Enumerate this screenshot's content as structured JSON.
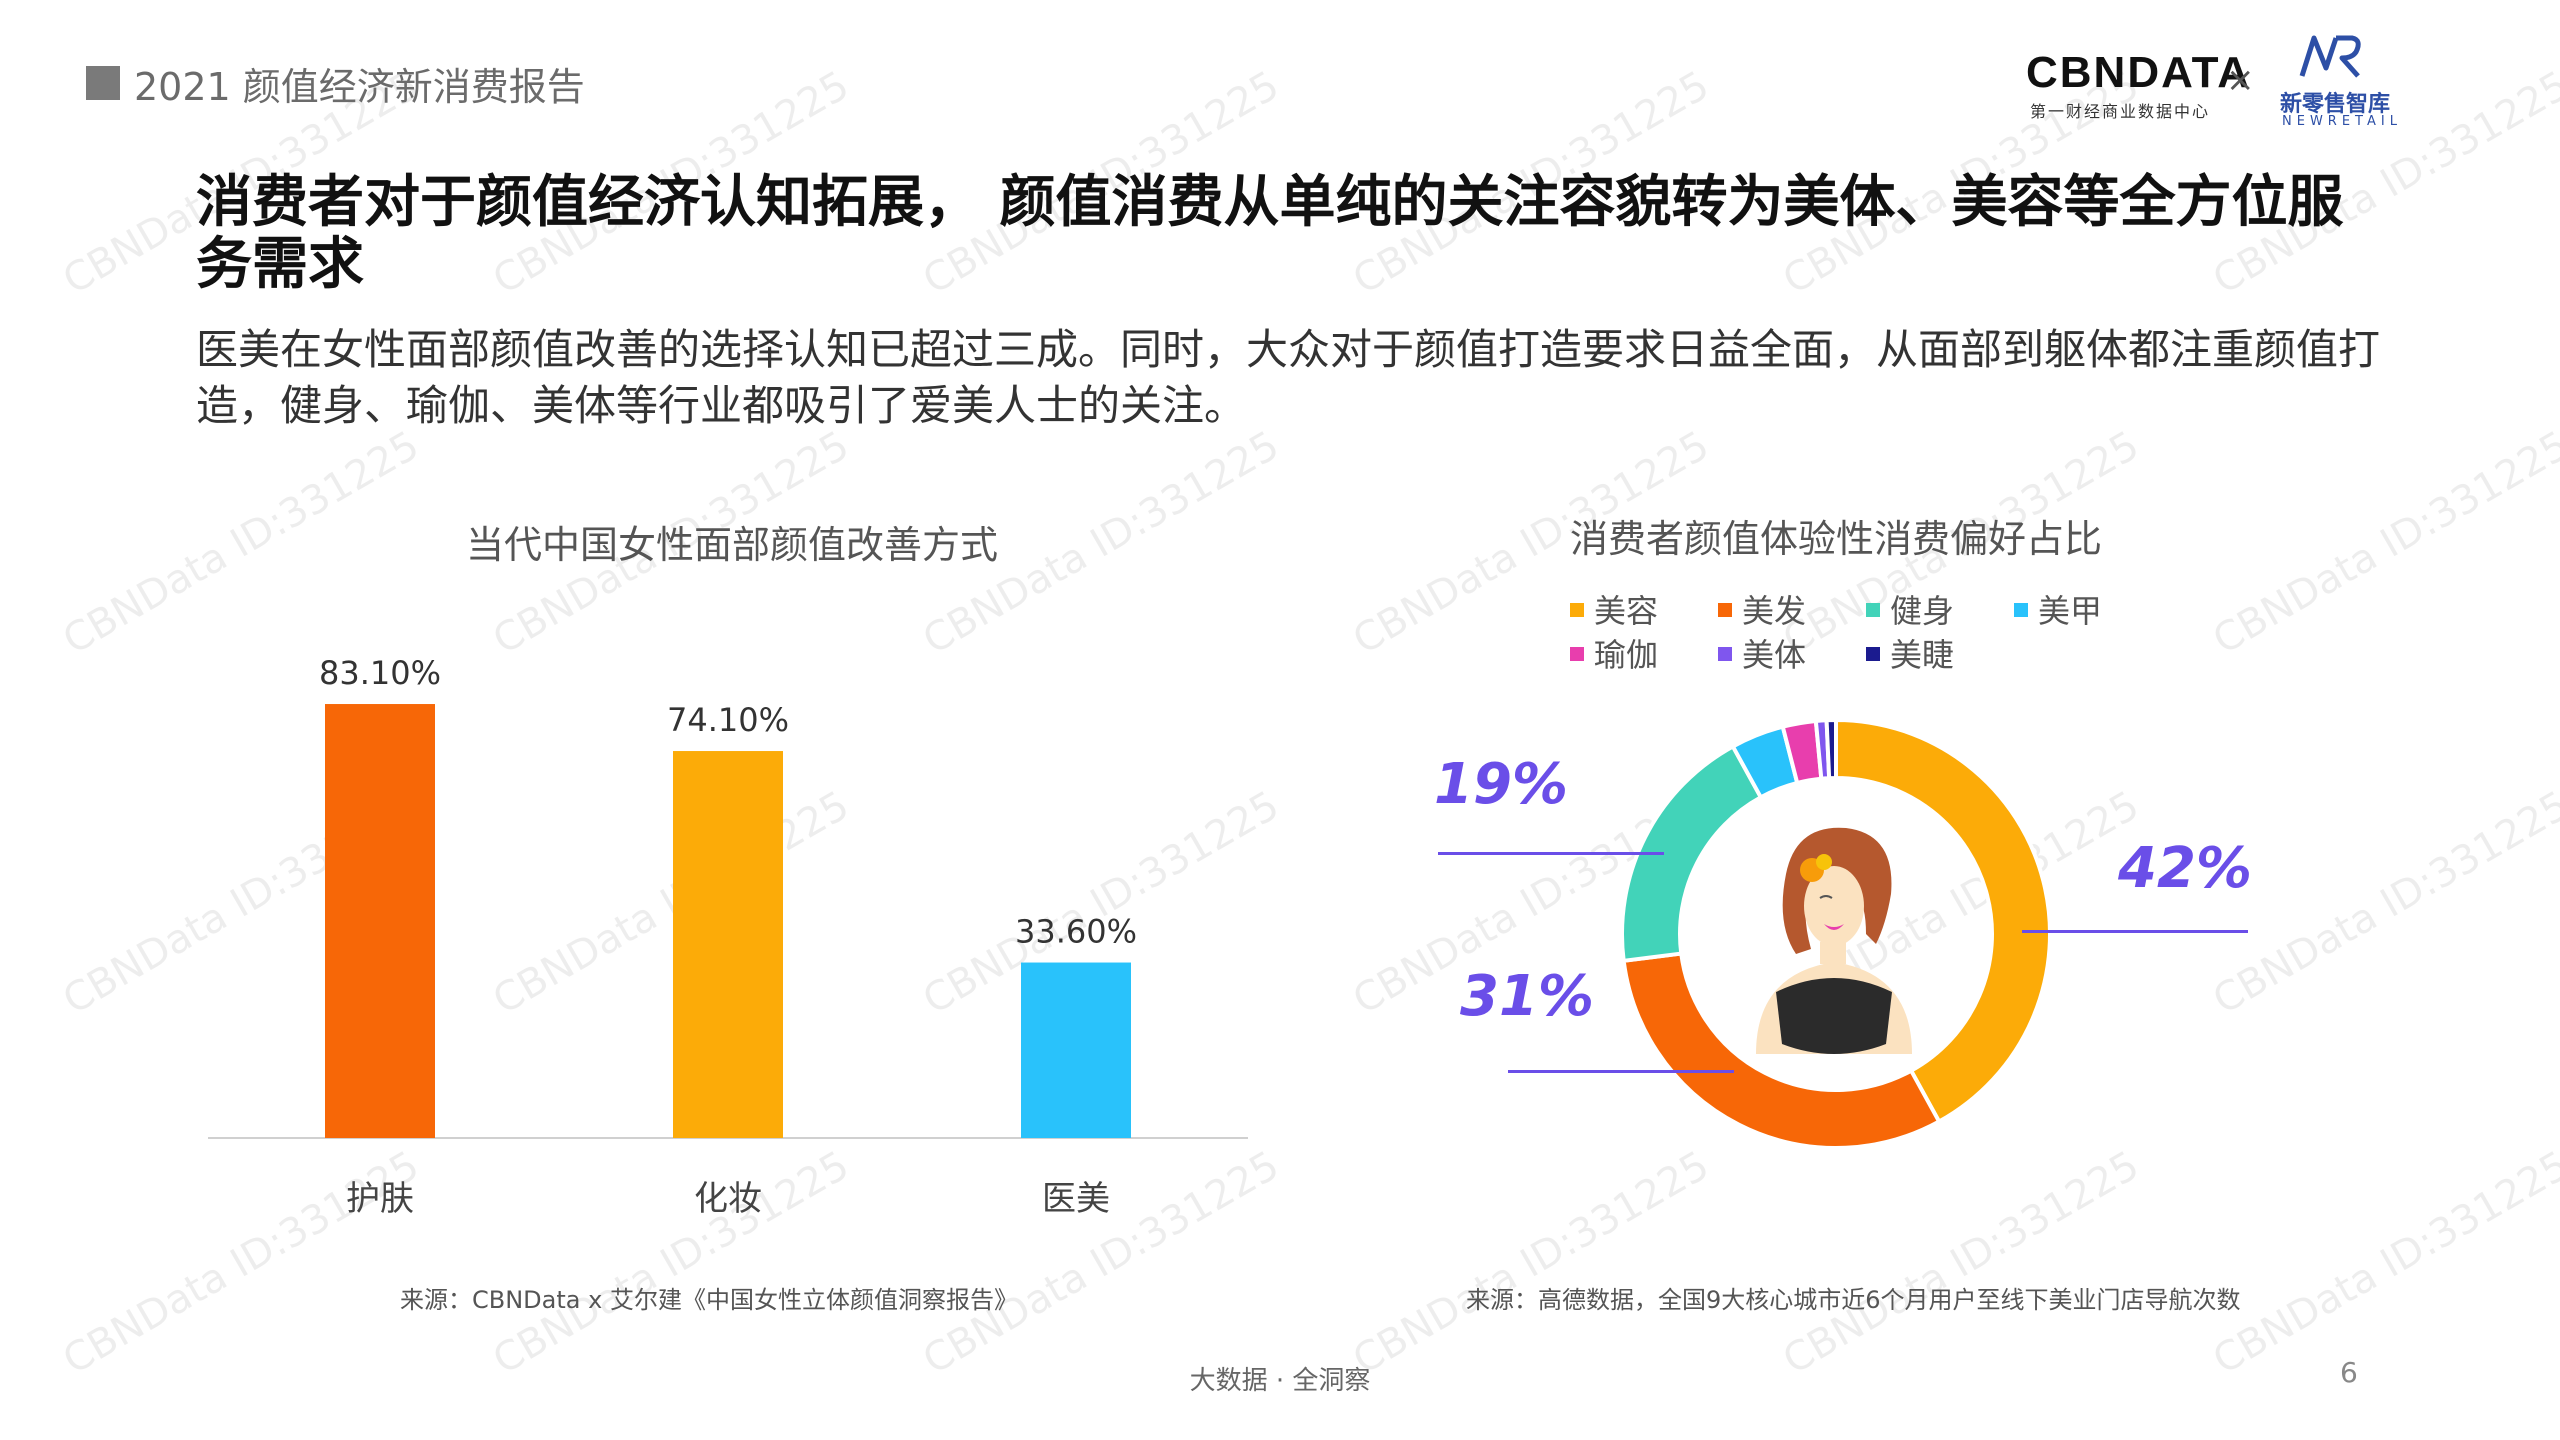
{
  "header": {
    "report_label": "2021 颜值经济新消费报告",
    "logo_cbn": "CBNDATA",
    "logo_cbn_sub": "第一财经商业数据中心",
    "logo_x": "×",
    "logo_nr_cn": "新零售智库",
    "logo_nr_en": "NEWRETAIL"
  },
  "title": "消费者对于颜值经济认知拓展， 颜值消费从单纯的关注容貌转为美体、美容等全方位服务需求",
  "subtitle": "医美在女性面部颜值改善的选择认知已超过三成。同时，大众对于颜值打造要求日益全面，从面部到躯体都注重颜值打造，健身、瑜伽、美体等行业都吸引了爱美人士的关注。",
  "chart_data": [
    {
      "type": "bar",
      "title": "当代中国女性面部颜值改善方式",
      "categories": [
        "护肤",
        "化妆",
        "医美"
      ],
      "values": [
        83.1,
        74.1,
        33.6
      ],
      "value_labels": [
        "83.10%",
        "74.10%",
        "33.60%"
      ],
      "colors": [
        "#f76707",
        "#fcab08",
        "#29c2fb"
      ],
      "ylim": [
        0,
        90
      ],
      "grid": false,
      "source": "来源：CBNData x 艾尔建《中国女性立体颜值洞察报告》"
    },
    {
      "type": "pie",
      "donut": true,
      "title": "消费者颜值体验性消费偏好占比",
      "legend_position": "top",
      "categories": [
        "美容",
        "美发",
        "健身",
        "美甲",
        "瑜伽",
        "美体",
        "美睫"
      ],
      "values": [
        42,
        31,
        19,
        4,
        2.5,
        0.8,
        0.7
      ],
      "colors": [
        "#fcab08",
        "#f76707",
        "#42d3b9",
        "#29c2fb",
        "#e83ead",
        "#7f56ee",
        "#1b1b8f"
      ],
      "callouts": [
        "42%",
        "31%",
        "19%"
      ],
      "source": "来源：高德数据，全国9大核心城市近6个月用户至线下美业门店导航次数"
    }
  ],
  "footer": {
    "text": "大数据 · 全洞察",
    "page": "6"
  },
  "watermark": "CBNData ID:331225"
}
